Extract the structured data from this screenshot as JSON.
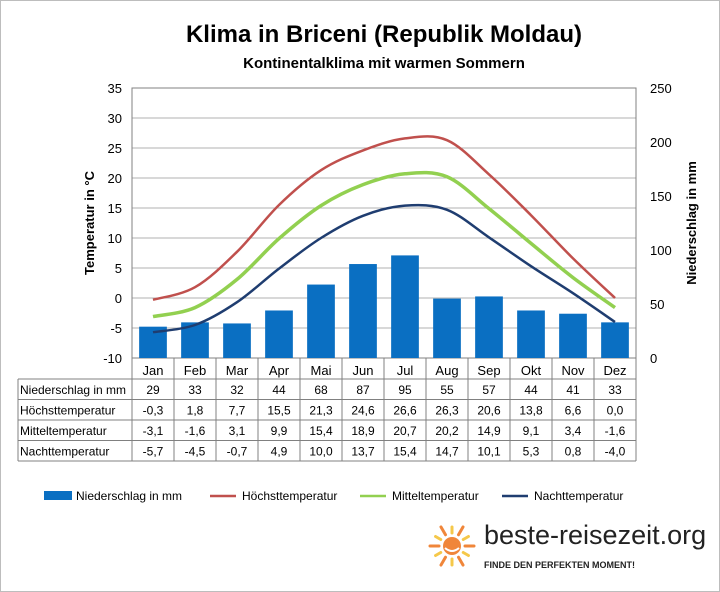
{
  "colors": {
    "precip": "#0a6fc2",
    "high": "#c0504d",
    "mean": "#92d050",
    "night": "#1f3d70",
    "sun_orange": "#f0863a",
    "sun_yellow": "#f5c84a"
  },
  "chart_data": {
    "type": "bar",
    "title": "Klima in Briceni (Republik Moldau)",
    "subtitle": "Kontinentalklima mit warmen Sommern",
    "ylabel_left": "Temperatur in °C",
    "ylabel_right": "Niederschlag in mm",
    "ylim_left": [
      -10,
      35
    ],
    "yticks_left": [
      "35",
      "30",
      "25",
      "20",
      "15",
      "10",
      "5",
      "0",
      "-5",
      "-10"
    ],
    "ylim_right": [
      0,
      250
    ],
    "yticks_right": [
      "250",
      "200",
      "150",
      "100",
      "50",
      "0"
    ],
    "grid": true,
    "legend_position": "bottom",
    "categories": [
      "Jan",
      "Feb",
      "Mar",
      "Apr",
      "Mai",
      "Jun",
      "Jul",
      "Aug",
      "Sep",
      "Okt",
      "Nov",
      "Dez"
    ],
    "series": [
      {
        "name": "Niederschlag in mm",
        "type": "bar",
        "axis": "right",
        "values": [
          29,
          33,
          32,
          44,
          68,
          87,
          95,
          55,
          57,
          44,
          41,
          33
        ],
        "labels": [
          "29",
          "33",
          "32",
          "44",
          "68",
          "87",
          "95",
          "55",
          "57",
          "44",
          "41",
          "33"
        ]
      },
      {
        "name": "Höchsttemperatur",
        "type": "line",
        "axis": "left",
        "values": [
          -0.3,
          1.8,
          7.7,
          15.5,
          21.3,
          24.6,
          26.6,
          26.3,
          20.6,
          13.8,
          6.6,
          0.0
        ],
        "labels": [
          "-0,3",
          "1,8",
          "7,7",
          "15,5",
          "21,3",
          "24,6",
          "26,6",
          "26,3",
          "20,6",
          "13,8",
          "6,6",
          "0,0"
        ]
      },
      {
        "name": "Mitteltemperatur",
        "type": "line",
        "axis": "left",
        "values": [
          -3.1,
          -1.6,
          3.1,
          9.9,
          15.4,
          18.9,
          20.7,
          20.2,
          14.9,
          9.1,
          3.4,
          -1.6
        ],
        "labels": [
          "-3,1",
          "-1,6",
          "3,1",
          "9,9",
          "15,4",
          "18,9",
          "20,7",
          "20,2",
          "14,9",
          "9,1",
          "3,4",
          "-1,6"
        ]
      },
      {
        "name": "Nachttemperatur",
        "type": "line",
        "axis": "left",
        "values": [
          -5.7,
          -4.5,
          -0.7,
          4.9,
          10.0,
          13.7,
          15.4,
          14.7,
          10.1,
          5.3,
          0.8,
          -4.0
        ],
        "labels": [
          "-5,7",
          "-4,5",
          "-0,7",
          "4,9",
          "10,0",
          "13,7",
          "15,4",
          "14,7",
          "10,1",
          "5,3",
          "0,8",
          "-4,0"
        ]
      }
    ]
  },
  "branding": {
    "name": "beste-reisezeit.org",
    "slogan": "FINDE DEN PERFEKTEN MOMENT!",
    "logo_icon": "sun-icon"
  }
}
